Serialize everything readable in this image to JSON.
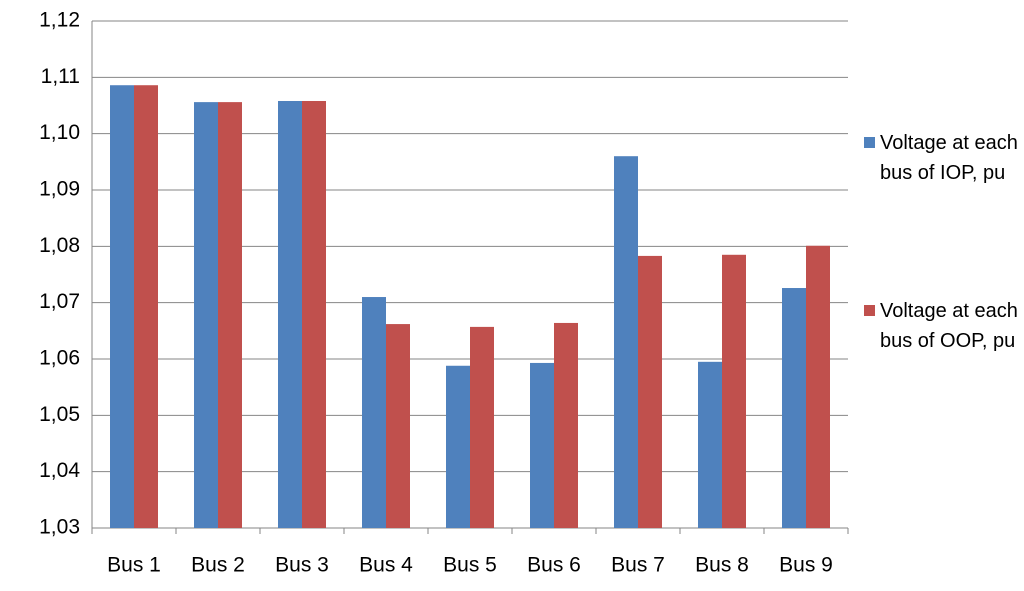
{
  "chart_data": {
    "type": "bar",
    "categories": [
      "Bus 1",
      "Bus 2",
      "Bus 3",
      "Bus 4",
      "Bus 5",
      "Bus 6",
      "Bus 7",
      "Bus 8",
      "Bus 9"
    ],
    "series": [
      {
        "name": "Voltage at each bus of IOP, pu",
        "color": "#4f81bd",
        "values": [
          1.1086,
          1.1056,
          1.1058,
          1.071,
          1.0588,
          1.0593,
          1.096,
          1.0595,
          1.0726
        ]
      },
      {
        "name": "Voltage at each bus of OOP, pu",
        "color": "#c0504d",
        "values": [
          1.1086,
          1.1056,
          1.1058,
          1.0662,
          1.0657,
          1.0664,
          1.0783,
          1.0785,
          1.0801
        ]
      }
    ],
    "ylim": [
      1.03,
      1.12
    ],
    "yticks": [
      {
        "value": 1.03,
        "label": "1,03"
      },
      {
        "value": 1.04,
        "label": "1,04"
      },
      {
        "value": 1.05,
        "label": "1,05"
      },
      {
        "value": 1.06,
        "label": "1,06"
      },
      {
        "value": 1.07,
        "label": "1,07"
      },
      {
        "value": 1.08,
        "label": "1,08"
      },
      {
        "value": 1.09,
        "label": "1,09"
      },
      {
        "value": 1.1,
        "label": "1,10"
      },
      {
        "value": 1.11,
        "label": "1,11"
      },
      {
        "value": 1.12,
        "label": "1,12"
      }
    ],
    "grid": true,
    "legend": "right"
  }
}
